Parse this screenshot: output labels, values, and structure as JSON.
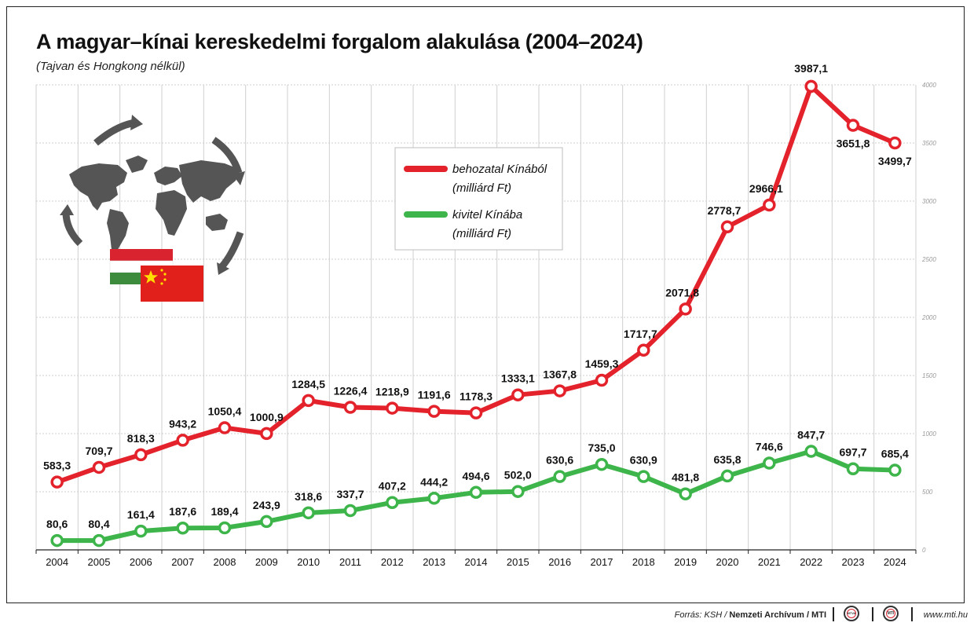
{
  "title": "A magyar–kínai kereskedelmi forgalom alakulása (2004–2024)",
  "subtitle": "(Tajvan és Hongkong nélkül)",
  "legend": {
    "import_line1": "behozatal Kínából",
    "import_line2": "(milliárd Ft)",
    "export_line1": "kivitel Kínába",
    "export_line2": "(milliárd Ft)"
  },
  "footer": {
    "source_prefix": "Forrás: KSH / ",
    "source_bold": "Nemzeti Archívum / MTI",
    "logo1": "MTVA",
    "logo2": "MTI",
    "url": "www.mti.hu"
  },
  "colors": {
    "import": "#e3222b",
    "export": "#3db54a",
    "grid": "#cfcfcf",
    "map": "#555555"
  },
  "icons": [
    "world-map-icon",
    "circular-arrows-icon",
    "hungary-flag-icon",
    "china-flag-icon"
  ],
  "chart_data": {
    "type": "line",
    "x": [
      "2004",
      "2005",
      "2006",
      "2007",
      "2008",
      "2009",
      "2010",
      "2011",
      "2012",
      "2013",
      "2014",
      "2015",
      "2016",
      "2017",
      "2018",
      "2019",
      "2020",
      "2021",
      "2022",
      "2023",
      "2024"
    ],
    "ylim": [
      0,
      4000
    ],
    "yticks": [
      0,
      500,
      1000,
      1500,
      2000,
      2500,
      3000,
      3500,
      4000
    ],
    "grid": true,
    "legend_position": "top-center",
    "series": [
      {
        "name": "behozatal Kínából (milliárd Ft)",
        "key": "import",
        "values": [
          583.3,
          709.7,
          818.3,
          943.2,
          1050.4,
          1000.9,
          1284.5,
          1226.4,
          1218.9,
          1191.6,
          1178.3,
          1333.1,
          1367.8,
          1459.3,
          1717.7,
          2071.8,
          2778.7,
          2966.1,
          3987.1,
          3651.8,
          3499.7
        ],
        "labels": [
          "583,3",
          "709,7",
          "818,3",
          "943,2",
          "1050,4",
          "1000,9",
          "1284,5",
          "1226,4",
          "1218,9",
          "1191,6",
          "1178,3",
          "1333,1",
          "1367,8",
          "1459,3",
          "1717,7",
          "2071,8",
          "2778,7",
          "2966,1",
          "3987,1",
          "3651,8",
          "3499,7"
        ]
      },
      {
        "name": "kivitel Kínába (milliárd Ft)",
        "key": "export",
        "values": [
          80.6,
          80.4,
          161.4,
          187.6,
          189.4,
          243.9,
          318.6,
          337.7,
          407.2,
          444.2,
          494.6,
          502.0,
          630.6,
          735.0,
          630.9,
          481.8,
          635.8,
          746.6,
          847.7,
          697.7,
          685.4
        ],
        "labels": [
          "80,6",
          "80,4",
          "161,4",
          "187,6",
          "189,4",
          "243,9",
          "318,6",
          "337,7",
          "407,2",
          "444,2",
          "494,6",
          "502,0",
          "630,6",
          "735,0",
          "630,9",
          "481,8",
          "635,8",
          "746,6",
          "847,7",
          "697,7",
          "685,4"
        ]
      }
    ]
  }
}
